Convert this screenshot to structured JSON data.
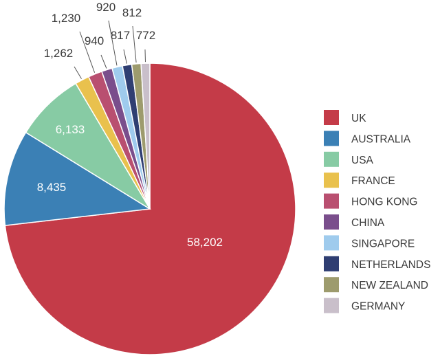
{
  "chart_data": {
    "type": "pie",
    "title": "",
    "start_angle_deg": 0,
    "direction": "clockwise",
    "legend_position": "right",
    "slices": [
      {
        "name": "UK",
        "value": 58202,
        "label": "58,202",
        "color": "#c43b48",
        "label_placement": "inside"
      },
      {
        "name": "AUSTRALIA",
        "value": 8435,
        "label": "8,435",
        "color": "#3b80b5",
        "label_placement": "inside"
      },
      {
        "name": "USA",
        "value": 6133,
        "label": "6,133",
        "color": "#87cba4",
        "label_placement": "inside"
      },
      {
        "name": "FRANCE",
        "value": 1262,
        "label": "1,262",
        "color": "#e9c14d",
        "label_placement": "outside"
      },
      {
        "name": "HONG KONG",
        "value": 1230,
        "label": "1,230",
        "color": "#b94f70",
        "label_placement": "outside"
      },
      {
        "name": "CHINA",
        "value": 940,
        "label": "940",
        "color": "#7a4e8c",
        "label_placement": "outside"
      },
      {
        "name": "SINGAPORE",
        "value": 920,
        "label": "920",
        "color": "#9fcbed",
        "label_placement": "outside"
      },
      {
        "name": "NETHERLANDS",
        "value": 817,
        "label": "817",
        "color": "#2f3e72",
        "label_placement": "outside"
      },
      {
        "name": "NEW ZEALAND",
        "value": 812,
        "label": "812",
        "color": "#9d9b6d",
        "label_placement": "outside"
      },
      {
        "name": "GERMANY",
        "value": 772,
        "label": "772",
        "color": "#c9bfca",
        "label_placement": "outside"
      }
    ]
  }
}
